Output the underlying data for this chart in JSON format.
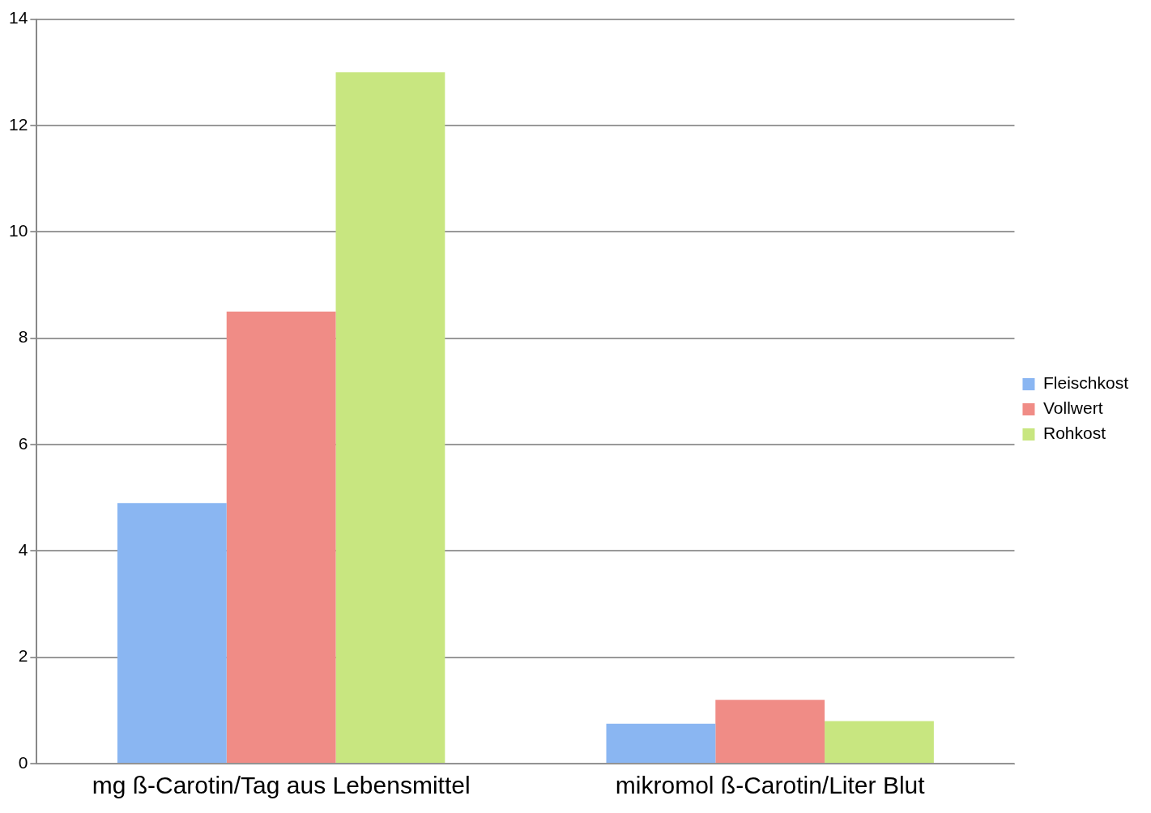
{
  "chart_data": {
    "type": "bar",
    "categories": [
      "mg ß-Carotin/Tag aus Lebensmittel",
      "mikromol ß-Carotin/Liter Blut"
    ],
    "series": [
      {
        "name": "Fleischkost",
        "color": "#8ab6f2",
        "values": [
          4.9,
          0.75
        ]
      },
      {
        "name": "Vollwert",
        "color": "#f08c86",
        "values": [
          8.5,
          1.2
        ]
      },
      {
        "name": "Rohkost",
        "color": "#c8e680",
        "values": [
          13,
          0.8
        ]
      }
    ],
    "ylim": [
      0,
      14
    ],
    "yticks": [
      0,
      2,
      4,
      6,
      8,
      10,
      12,
      14
    ],
    "grid": "y",
    "legend": "right"
  }
}
